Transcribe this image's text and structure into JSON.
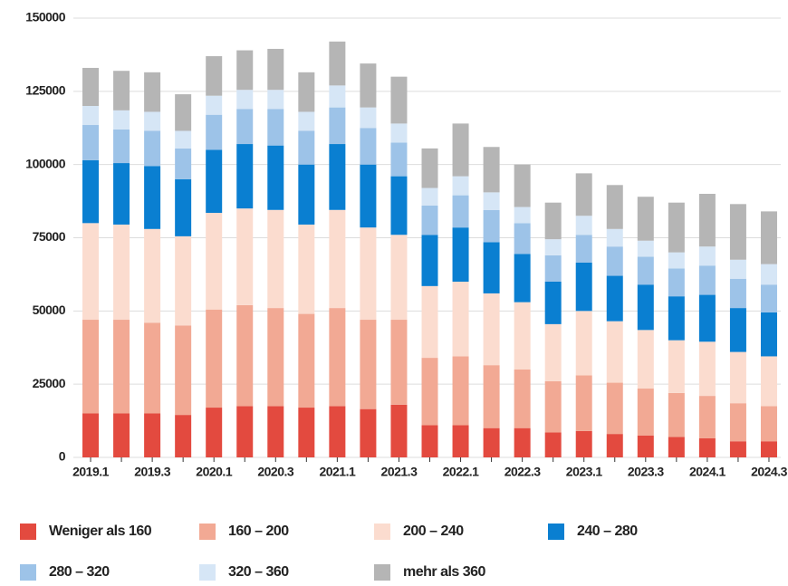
{
  "chart_data": {
    "type": "stacked-bar",
    "categories": [
      "2019.1",
      null,
      "2019.3",
      null,
      "2020.1",
      null,
      "2020.3",
      null,
      "2021.1",
      null,
      "2021.3",
      null,
      "2022.1",
      null,
      "2022.3",
      null,
      "2023.1",
      null,
      "2023.3",
      null,
      "2024.1",
      null,
      "2024.3"
    ],
    "series": [
      {
        "name": "Weniger als 160",
        "color": "#e34a3f",
        "values": [
          15000,
          15000,
          15000,
          14500,
          17000,
          17500,
          17500,
          17000,
          17500,
          16500,
          18000,
          11000,
          11000,
          10000,
          10000,
          8500,
          9000,
          8000,
          7500,
          7000,
          6500,
          5500,
          5500
        ]
      },
      {
        "name": "160 – 200",
        "color": "#f2a994",
        "values": [
          32000,
          32000,
          31000,
          30500,
          33500,
          34500,
          33500,
          32000,
          33500,
          30500,
          29000,
          23000,
          23500,
          21500,
          20000,
          17500,
          19000,
          17500,
          16000,
          15000,
          14500,
          13000,
          12000
        ]
      },
      {
        "name": "200 – 240",
        "color": "#fbdccf",
        "values": [
          33000,
          32500,
          32000,
          30500,
          33000,
          33000,
          33500,
          30500,
          33500,
          31500,
          29000,
          24500,
          25500,
          24500,
          23000,
          19500,
          22000,
          21000,
          20000,
          18000,
          18500,
          17500,
          17000
        ]
      },
      {
        "name": "240 – 280",
        "color": "#0a7fd1",
        "values": [
          21500,
          21000,
          21500,
          19500,
          21500,
          22000,
          22000,
          20500,
          22500,
          21500,
          20000,
          17500,
          18500,
          17500,
          16500,
          14500,
          16500,
          15500,
          15500,
          15000,
          16000,
          15000,
          15000
        ]
      },
      {
        "name": "280 – 320",
        "color": "#9dc3e8",
        "values": [
          12000,
          11500,
          12000,
          10500,
          12000,
          12000,
          12500,
          11500,
          12500,
          12500,
          11500,
          10000,
          11000,
          11000,
          10500,
          9000,
          9500,
          10000,
          9500,
          9500,
          10000,
          10000,
          9500
        ]
      },
      {
        "name": "320 – 360",
        "color": "#d6e6f6",
        "values": [
          6500,
          6500,
          6500,
          6000,
          6500,
          6500,
          6500,
          6500,
          7500,
          7000,
          6500,
          6000,
          6500,
          6000,
          5500,
          5500,
          6500,
          6000,
          5500,
          5500,
          6500,
          6500,
          7000
        ]
      },
      {
        "name": "mehr als 360",
        "color": "#b5b5b5",
        "values": [
          13000,
          13500,
          13500,
          12500,
          13500,
          13500,
          14000,
          13500,
          15000,
          15000,
          16000,
          13500,
          18000,
          15500,
          14500,
          12500,
          14500,
          15000,
          15000,
          17000,
          18000,
          19000,
          18000
        ]
      }
    ],
    "ylim": [
      0,
      150000
    ],
    "yticks": [
      0,
      25000,
      50000,
      75000,
      100000,
      125000,
      150000
    ],
    "grid": true
  }
}
